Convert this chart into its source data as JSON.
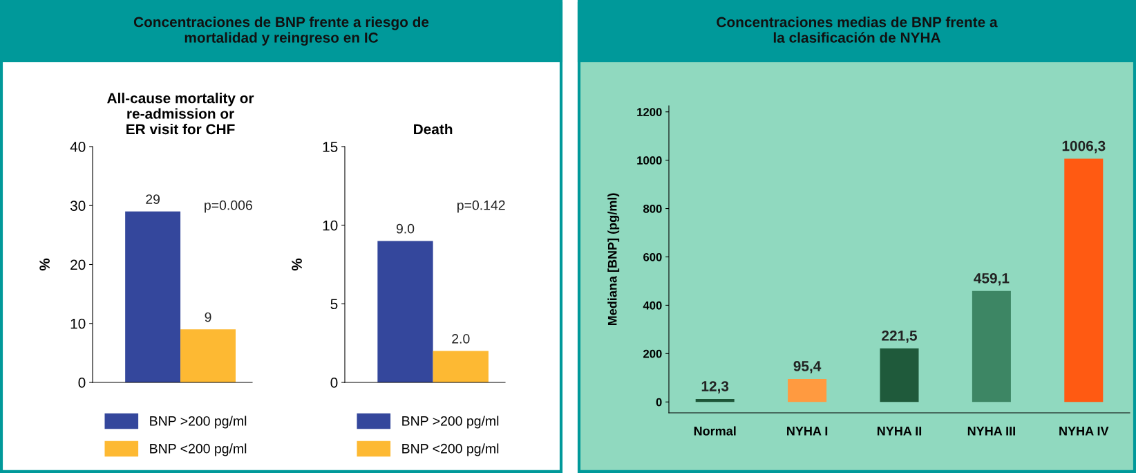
{
  "chart_data": [
    {
      "type": "bar",
      "subtitle": "Concentraciones de BNP frente a riesgo de\nmortalidad y reingreso en IC",
      "title": "All-cause mortality or\nre-admission or\nER visit for CHF",
      "ylabel": "%",
      "categories": [
        null
      ],
      "series": [
        {
          "name": "BNP >200 pg/ml",
          "color": "#34479c",
          "values": [
            29
          ]
        },
        {
          "name": "BNP <200 pg/ml",
          "color": "#fdb933",
          "values": [
            9
          ]
        }
      ],
      "ylim": [
        0,
        40
      ],
      "yticks": [
        0,
        10,
        20,
        30,
        40
      ],
      "data_labels": true,
      "annotations": [
        "p=0.006"
      ],
      "legend": "bottom",
      "grid": false
    },
    {
      "type": "bar",
      "title": "Death",
      "ylabel": "%",
      "categories": [
        null
      ],
      "series": [
        {
          "name": "BNP >200 pg/ml",
          "color": "#34479c",
          "values": [
            9.0
          ],
          "value_labels": [
            "9.0"
          ]
        },
        {
          "name": "BNP <200 pg/ml",
          "color": "#fdb933",
          "values": [
            2.0
          ],
          "value_labels": [
            "2.0"
          ]
        }
      ],
      "ylim": [
        0,
        15
      ],
      "yticks": [
        0,
        5,
        10,
        15
      ],
      "annotations": [
        "p=0.142"
      ],
      "legend": "bottom",
      "grid": false
    },
    {
      "type": "bar",
      "title": "Concentraciones medias de BNP frente a\nla clasificación de NYHA",
      "ylabel": "Mediana [BNP] (pg/ml)",
      "categories": [
        "Normal",
        "NYHA I",
        "NYHA II",
        "NYHA III",
        "NYHA IV"
      ],
      "values": [
        12.3,
        95.4,
        221.5,
        459.1,
        1006.3
      ],
      "value_labels": [
        "12,3",
        "95,4",
        "221,5",
        "459,1",
        "1006,3"
      ],
      "colors": [
        "#1d5537",
        "#ff9a40",
        "#1f5a3b",
        "#3d8664",
        "#ff5a12"
      ],
      "ylim": [
        -45,
        1225
      ],
      "yticks": [
        0,
        200,
        400,
        600,
        800,
        1000,
        1200
      ],
      "legend": false,
      "grid": false
    }
  ]
}
